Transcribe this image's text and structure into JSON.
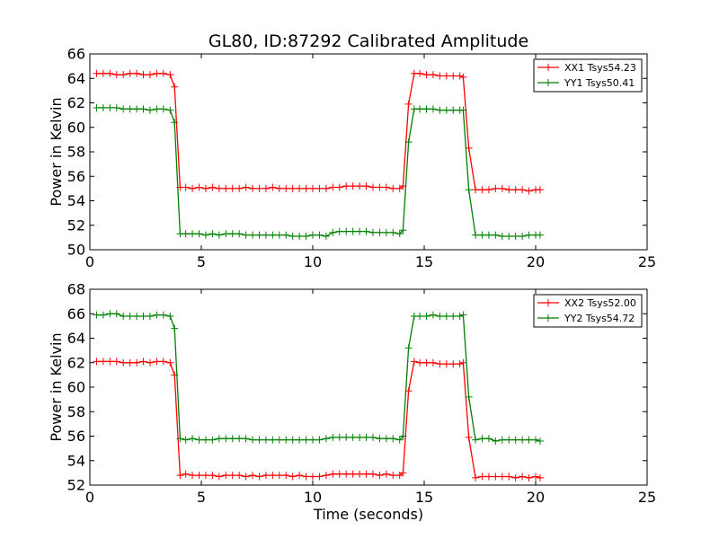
{
  "chart_data": [
    {
      "type": "line",
      "title": "GL80, ID:87292 Calibrated Amplitude",
      "xlabel": "",
      "ylabel": "Power in Kelvin",
      "xlim": [
        0,
        25
      ],
      "ylim": [
        50,
        66
      ],
      "xticks": [
        0,
        5,
        10,
        15,
        20,
        25
      ],
      "yticks": [
        50,
        52,
        54,
        56,
        58,
        60,
        62,
        64,
        66
      ],
      "grid": false,
      "legend_position": "top-right",
      "x": [
        0.3,
        0.6,
        0.9,
        1.2,
        1.5,
        1.8,
        2.1,
        2.4,
        2.7,
        3.0,
        3.3,
        3.6,
        3.8,
        4.05,
        4.3,
        4.6,
        4.9,
        5.2,
        5.5,
        5.8,
        6.1,
        6.4,
        6.7,
        7.0,
        7.3,
        7.6,
        7.9,
        8.2,
        8.5,
        8.8,
        9.1,
        9.4,
        9.7,
        10.0,
        10.3,
        10.6,
        10.9,
        11.2,
        11.5,
        11.8,
        12.1,
        12.4,
        12.7,
        13.0,
        13.3,
        13.6,
        13.9,
        14.05,
        14.3,
        14.55,
        14.8,
        15.1,
        15.4,
        15.7,
        16.0,
        16.3,
        16.6,
        16.75,
        17.0,
        17.3,
        17.6,
        17.9,
        18.2,
        18.5,
        18.8,
        19.1,
        19.4,
        19.7,
        20.0,
        20.2
      ],
      "series": [
        {
          "name": "XX1 Tsys54.23",
          "color": "#ff0000",
          "values": [
            64.4,
            64.4,
            64.4,
            64.3,
            64.3,
            64.4,
            64.4,
            64.3,
            64.3,
            64.4,
            64.4,
            64.3,
            63.3,
            55.1,
            55.1,
            55.0,
            55.1,
            55.0,
            55.1,
            55.0,
            55.0,
            55.0,
            55.0,
            55.1,
            55.0,
            55.0,
            55.0,
            55.1,
            55.0,
            55.0,
            55.0,
            55.0,
            55.0,
            55.0,
            55.0,
            55.0,
            55.1,
            55.1,
            55.2,
            55.2,
            55.2,
            55.2,
            55.1,
            55.1,
            55.1,
            55.0,
            55.0,
            55.2,
            61.9,
            64.4,
            64.4,
            64.3,
            64.3,
            64.2,
            64.2,
            64.2,
            64.2,
            64.1,
            58.3,
            54.9,
            54.9,
            54.9,
            55.0,
            55.0,
            54.9,
            54.9,
            54.9,
            54.8,
            54.9,
            54.9
          ]
        },
        {
          "name": "YY1 Tsys50.41",
          "color": "#008000",
          "values": [
            61.6,
            61.6,
            61.6,
            61.6,
            61.5,
            61.5,
            61.5,
            61.5,
            61.4,
            61.5,
            61.5,
            61.4,
            60.4,
            51.3,
            51.3,
            51.3,
            51.3,
            51.2,
            51.3,
            51.2,
            51.3,
            51.3,
            51.3,
            51.2,
            51.2,
            51.2,
            51.2,
            51.2,
            51.2,
            51.2,
            51.1,
            51.1,
            51.1,
            51.2,
            51.2,
            51.1,
            51.4,
            51.5,
            51.5,
            51.5,
            51.5,
            51.5,
            51.4,
            51.4,
            51.4,
            51.4,
            51.3,
            51.6,
            58.8,
            61.5,
            61.5,
            61.5,
            61.5,
            61.4,
            61.4,
            61.4,
            61.4,
            61.4,
            54.9,
            51.2,
            51.2,
            51.2,
            51.2,
            51.1,
            51.1,
            51.1,
            51.1,
            51.2,
            51.2,
            51.2
          ]
        }
      ]
    },
    {
      "type": "line",
      "title": "",
      "xlabel": "Time (seconds)",
      "ylabel": "Power in Kelvin",
      "xlim": [
        0,
        25
      ],
      "ylim": [
        52,
        68
      ],
      "xticks": [
        0,
        5,
        10,
        15,
        20,
        25
      ],
      "yticks": [
        52,
        54,
        56,
        58,
        60,
        62,
        64,
        66,
        68
      ],
      "grid": false,
      "legend_position": "top-right",
      "x": [
        0.3,
        0.6,
        0.9,
        1.2,
        1.5,
        1.8,
        2.1,
        2.4,
        2.7,
        3.0,
        3.3,
        3.6,
        3.8,
        4.05,
        4.3,
        4.6,
        4.9,
        5.2,
        5.5,
        5.8,
        6.1,
        6.4,
        6.7,
        7.0,
        7.3,
        7.6,
        7.9,
        8.2,
        8.5,
        8.8,
        9.1,
        9.4,
        9.7,
        10.0,
        10.3,
        10.6,
        10.9,
        11.2,
        11.5,
        11.8,
        12.1,
        12.4,
        12.7,
        13.0,
        13.3,
        13.6,
        13.9,
        14.05,
        14.3,
        14.55,
        14.8,
        15.1,
        15.4,
        15.7,
        16.0,
        16.3,
        16.6,
        16.75,
        17.0,
        17.3,
        17.6,
        17.9,
        18.2,
        18.5,
        18.8,
        19.1,
        19.4,
        19.7,
        20.0,
        20.2
      ],
      "series": [
        {
          "name": "XX2 Tsys52.00",
          "color": "#ff0000",
          "values": [
            62.1,
            62.1,
            62.1,
            62.1,
            62.0,
            62.0,
            62.0,
            62.1,
            62.0,
            62.1,
            62.1,
            62.0,
            61.0,
            52.8,
            52.9,
            52.8,
            52.8,
            52.8,
            52.8,
            52.7,
            52.8,
            52.8,
            52.8,
            52.7,
            52.8,
            52.7,
            52.8,
            52.8,
            52.8,
            52.8,
            52.7,
            52.8,
            52.7,
            52.7,
            52.7,
            52.8,
            52.9,
            52.9,
            52.9,
            52.9,
            52.9,
            52.9,
            52.9,
            52.8,
            52.9,
            52.8,
            52.8,
            53.0,
            59.7,
            62.1,
            62.0,
            62.0,
            62.0,
            61.9,
            61.9,
            61.9,
            61.9,
            62.0,
            55.9,
            52.6,
            52.7,
            52.7,
            52.7,
            52.7,
            52.7,
            52.6,
            52.7,
            52.6,
            52.7,
            52.6
          ]
        },
        {
          "name": "YY2 Tsys54.72",
          "color": "#008000",
          "values": [
            65.9,
            65.9,
            66.0,
            66.0,
            65.8,
            65.8,
            65.8,
            65.8,
            65.8,
            65.9,
            65.9,
            65.8,
            64.8,
            55.8,
            55.7,
            55.8,
            55.7,
            55.7,
            55.7,
            55.8,
            55.8,
            55.8,
            55.8,
            55.8,
            55.7,
            55.7,
            55.7,
            55.7,
            55.7,
            55.7,
            55.7,
            55.7,
            55.7,
            55.7,
            55.7,
            55.8,
            55.9,
            55.9,
            55.9,
            55.9,
            55.9,
            55.9,
            55.9,
            55.8,
            55.8,
            55.8,
            55.7,
            56.0,
            63.2,
            65.8,
            65.8,
            65.8,
            65.9,
            65.8,
            65.8,
            65.8,
            65.8,
            65.9,
            59.2,
            55.7,
            55.8,
            55.8,
            55.6,
            55.7,
            55.7,
            55.7,
            55.7,
            55.7,
            55.7,
            55.6
          ]
        }
      ]
    }
  ]
}
